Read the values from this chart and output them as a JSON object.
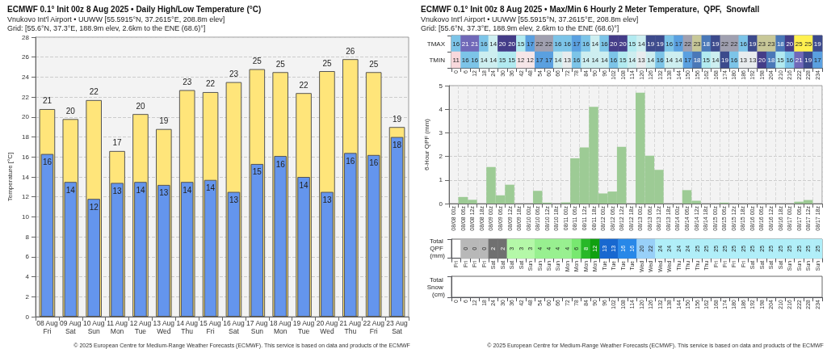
{
  "chart_data": [
    {
      "type": "bar",
      "title": "ECMWF 0.1° Init 00z 8 Aug 2025 • Daily High/Low Temperature (°C)",
      "subtitle": "Vnukovo Int'l Airport • UUWW [55.5915°N, 37.2615°E, 208.8m elev]\nGrid: [55.6°N, 37.3°E, 188.9m elev, 2.6km to the ENE (68.6)°]",
      "ylabel": "Temperature [°C]",
      "categories": [
        "08 Aug\nFri",
        "09 Aug\nSat",
        "10 Aug\nSun",
        "11 Aug\nMon",
        "12 Aug\nTue",
        "13 Aug\nWed",
        "14 Aug\nThu",
        "15 Aug\nFri",
        "16 Aug\nSat",
        "17 Aug\nSun",
        "18 Aug\nMon",
        "19 Aug\nTue",
        "20 Aug\nWed",
        "21 Aug\nThu",
        "22 Aug\nFri",
        "23 Aug\nSat"
      ],
      "series": [
        {
          "color": "#ffe57a",
          "values": [
            20.8,
            19.8,
            21.7,
            16.6,
            20.3,
            18.8,
            22.7,
            22.5,
            23.5,
            24.8,
            24.5,
            22.4,
            24.6,
            25.8,
            24.5,
            19.0
          ],
          "value_labels": [
            "21",
            "20",
            "22",
            "17",
            "20",
            "19",
            "23",
            "22",
            "23",
            "25",
            "25",
            "22",
            "25",
            "26",
            "25",
            "19"
          ]
        },
        {
          "color": "#6495ed",
          "values": [
            16.3,
            13.5,
            11.8,
            13.4,
            13.5,
            13.2,
            13.5,
            13.7,
            12.5,
            15.3,
            16.1,
            14.0,
            12.5,
            16.4,
            16.2,
            18.0
          ],
          "value_labels": [
            "16",
            "14",
            "12",
            "13",
            "14",
            "13",
            "14",
            "14",
            "13",
            "15",
            "16",
            "14",
            "13",
            "16",
            "16",
            "18"
          ]
        }
      ],
      "ylim": [
        0,
        28
      ],
      "yticks": [
        0,
        2,
        4,
        6,
        8,
        10,
        12,
        14,
        16,
        18,
        20,
        22,
        24,
        26,
        28
      ],
      "grid": "y",
      "annotations": [
        "© 2025 European Centre for Medium-Range Weather Forecasts (ECMWF). This service is based on data and products of the ECMWF"
      ]
    },
    {
      "type": "heatmap",
      "title": "ECMWF 0.1° Init 00z 8 Aug 2025 • Max/Min 6 Hourly 2 Meter Temperature,  QPF,  Snowfall",
      "subtitle": "Vnukovo Int'l Airport • UUWW [55.5915°N, 37.2615°E, 208.8m elev]\nGrid: [55.6°N, 37.3°E, 188.9m elev, 2.6km to the ENE (68.6)°]",
      "categories": [
        "0",
        "6",
        "12",
        "18",
        "24",
        "30",
        "36",
        "42",
        "48",
        "54",
        "60",
        "66",
        "72",
        "78",
        "84",
        "90",
        "96",
        "102",
        "108",
        "114",
        "120",
        "126",
        "132",
        "138",
        "144",
        "150",
        "156",
        "162",
        "168",
        "174",
        "180",
        "186",
        "192",
        "198",
        "204",
        "210",
        "216",
        "222",
        "228",
        "234"
      ],
      "y_categories": [
        "TMAX",
        "TMIN"
      ],
      "cells": [
        [
          16,
          21,
          21,
          16,
          14,
          20,
          20,
          15,
          17,
          22,
          22,
          16,
          16,
          17,
          16,
          14,
          16,
          20,
          20,
          15,
          14,
          19,
          19,
          16,
          17,
          22,
          23,
          18,
          19,
          22,
          22,
          16,
          19,
          23,
          23,
          18,
          20,
          25,
          25,
          19
        ],
        [
          11,
          16,
          16,
          14,
          14,
          15,
          15,
          12,
          12,
          17,
          17,
          14,
          13,
          16,
          14,
          14,
          14,
          16,
          15,
          14,
          13,
          14,
          16,
          14,
          14,
          17,
          18,
          15,
          14,
          19,
          16,
          13,
          13,
          20,
          18,
          15,
          16,
          21,
          19,
          17
        ]
      ],
      "data_labels": true
    },
    {
      "type": "bar",
      "ylabel": "6-Hour QPF (mm)",
      "color": "#9dcb95",
      "categories": [
        "08/08 00z",
        "08/08 06z",
        "08/08 12z",
        "08/08 18z",
        "08/09 00z",
        "08/09 06z",
        "08/09 12z",
        "08/09 18z",
        "08/10 00z",
        "08/10 06z",
        "08/10 12z",
        "08/10 18z",
        "08/11 00z",
        "08/11 06z",
        "08/11 12z",
        "08/11 18z",
        "08/12 00z",
        "08/12 06z",
        "08/12 12z",
        "08/12 18z",
        "08/13 00z",
        "08/13 06z",
        "08/13 12z",
        "08/13 18z",
        "08/14 00z",
        "08/14 06z",
        "08/14 12z",
        "08/14 18z",
        "08/15 00z",
        "08/15 06z",
        "08/15 12z",
        "08/15 18z",
        "08/16 00z",
        "08/16 06z",
        "08/16 12z",
        "08/16 18z",
        "08/17 00z",
        "08/17 06z",
        "08/17 12z",
        "08/17 18z"
      ],
      "values": [
        0,
        0.28,
        0.16,
        0,
        1.55,
        0.35,
        0.8,
        0,
        0,
        0.54,
        0.04,
        0,
        0.05,
        1.92,
        2.38,
        4.1,
        0.43,
        0.51,
        2.41,
        0,
        4.7,
        2.03,
        1.43,
        0,
        0,
        0.57,
        0.12,
        0,
        0,
        0.04,
        0,
        0,
        0,
        0,
        0,
        0,
        0,
        0.08,
        0.15,
        0
      ],
      "ylim": [
        0,
        5
      ],
      "yticks": [
        0,
        1,
        2,
        3,
        4,
        5
      ],
      "grid": true
    },
    {
      "type": "heatmap",
      "categories": [
        "Fri",
        "Fri",
        "Fri",
        "Fri",
        "Sat",
        "Sat",
        "Sat",
        "Sat",
        "Sun",
        "Sun",
        "Sun",
        "Sun",
        "Mon",
        "Mon",
        "Mon",
        "Mon",
        "Tue",
        "Tue",
        "Tue",
        "Tue",
        "Wed",
        "Wed",
        "Wed",
        "Wed",
        "Thu",
        "Thu",
        "Thu",
        "Thu",
        "Fri",
        "Fri",
        "Fri",
        "Fri",
        "Sat",
        "Sat",
        "Sat",
        "Sat",
        "Sun",
        "Sun",
        "Sun",
        "Sun"
      ],
      "y_categories": [
        "Total QPF (mm)"
      ],
      "cells": [
        [
          null,
          0,
          0,
          0,
          2,
          2,
          3,
          3,
          3,
          4,
          4,
          4,
          4,
          6,
          8,
          12,
          13,
          13,
          16,
          16,
          20,
          22,
          24,
          24,
          24,
          24,
          25,
          25,
          25,
          25,
          25,
          25,
          25,
          25,
          25,
          25,
          25,
          25,
          25,
          25
        ]
      ],
      "data_labels": true
    },
    {
      "type": "heatmap",
      "categories": [
        "0",
        "6",
        "12",
        "18",
        "24",
        "30",
        "36",
        "42",
        "48",
        "54",
        "60",
        "66",
        "72",
        "78",
        "84",
        "90",
        "96",
        "102",
        "108",
        "114",
        "120",
        "126",
        "132",
        "138",
        "144",
        "150",
        "156",
        "162",
        "168",
        "174",
        "180",
        "186",
        "192",
        "198",
        "204",
        "210",
        "216",
        "222",
        "228",
        "234"
      ],
      "y_categories": [
        "Total Snow (cm)"
      ],
      "cells": [
        [
          null,
          null,
          null,
          null,
          null,
          null,
          null,
          null,
          null,
          null,
          null,
          null,
          null,
          null,
          null,
          null,
          null,
          null,
          null,
          null,
          null,
          null,
          null,
          null,
          null,
          null,
          null,
          null,
          null,
          null,
          null,
          null,
          null,
          null,
          null,
          null,
          null,
          null,
          null,
          null
        ]
      ],
      "annotations": [
        "© 2025 European Centre for Medium-Range Weather Forecasts (ECMWF). This service is based on data and products of the ECMWF"
      ]
    }
  ]
}
